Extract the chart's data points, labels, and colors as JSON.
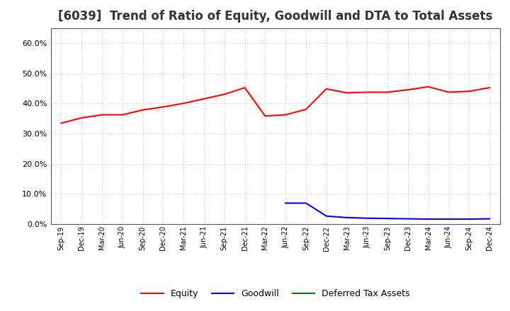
{
  "title": "[6039]  Trend of Ratio of Equity, Goodwill and DTA to Total Assets",
  "x_labels": [
    "Sep-19",
    "Dec-19",
    "Mar-20",
    "Jun-20",
    "Sep-20",
    "Dec-20",
    "Mar-21",
    "Jun-21",
    "Sep-21",
    "Dec-21",
    "Mar-22",
    "Jun-22",
    "Sep-22",
    "Dec-22",
    "Mar-23",
    "Jun-23",
    "Sep-23",
    "Dec-23",
    "Mar-24",
    "Jun-24",
    "Sep-24",
    "Dec-24"
  ],
  "equity": [
    0.334,
    0.352,
    0.362,
    0.362,
    0.378,
    0.388,
    0.4,
    0.415,
    0.43,
    0.452,
    0.358,
    0.362,
    0.38,
    0.448,
    0.435,
    0.437,
    0.437,
    0.445,
    0.455,
    0.437,
    0.44,
    0.452
  ],
  "goodwill": [
    null,
    null,
    null,
    null,
    null,
    null,
    null,
    null,
    null,
    null,
    null,
    0.069,
    0.069,
    0.026,
    0.021,
    0.019,
    0.018,
    0.017,
    0.016,
    0.016,
    0.016,
    0.017
  ],
  "dta": [
    null,
    null,
    null,
    null,
    null,
    null,
    null,
    null,
    null,
    null,
    null,
    null,
    null,
    null,
    null,
    null,
    null,
    null,
    null,
    null,
    null,
    null
  ],
  "equity_color": "#FF0000",
  "goodwill_color": "#0000FF",
  "dta_color": "#008000",
  "bg_color": "#FFFFFF",
  "plot_bg_color": "#FFFFFF",
  "grid_color": "#999999",
  "ylim": [
    0.0,
    0.65
  ],
  "yticks": [
    0.0,
    0.1,
    0.2,
    0.3,
    0.4,
    0.5,
    0.6
  ],
  "title_fontsize": 12,
  "legend_labels": [
    "Equity",
    "Goodwill",
    "Deferred Tax Assets"
  ]
}
